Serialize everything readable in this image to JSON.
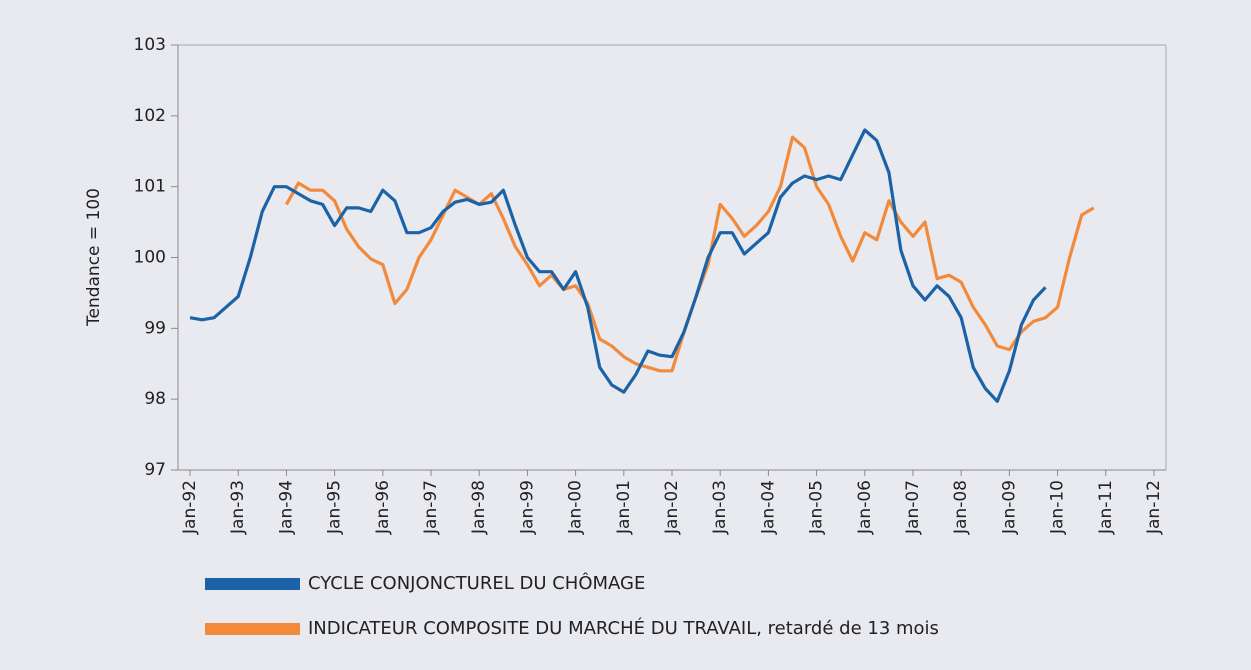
{
  "chart_data": {
    "type": "line",
    "y_label": "Tendance = 100",
    "x": [
      "1992-01",
      "1992-04",
      "1992-07",
      "1992-10",
      "1993-01",
      "1993-04",
      "1993-07",
      "1993-10",
      "1994-01",
      "1994-04",
      "1994-07",
      "1994-10",
      "1995-01",
      "1995-04",
      "1995-07",
      "1995-10",
      "1996-01",
      "1996-04",
      "1996-07",
      "1996-10",
      "1997-01",
      "1997-04",
      "1997-07",
      "1997-10",
      "1998-01",
      "1998-04",
      "1998-07",
      "1998-10",
      "1999-01",
      "1999-04",
      "1999-07",
      "1999-10",
      "2000-01",
      "2000-04",
      "2000-07",
      "2000-10",
      "2001-01",
      "2001-04",
      "2001-07",
      "2001-10",
      "2002-01",
      "2002-04",
      "2002-07",
      "2002-10",
      "2003-01",
      "2003-04",
      "2003-07",
      "2003-10",
      "2004-01",
      "2004-04",
      "2004-07",
      "2004-10",
      "2005-01",
      "2005-04",
      "2005-07",
      "2005-10",
      "2006-01",
      "2006-04",
      "2006-07",
      "2006-10",
      "2007-01",
      "2007-04",
      "2007-07",
      "2007-10",
      "2008-01",
      "2008-04",
      "2008-07",
      "2008-10",
      "2009-01",
      "2009-04",
      "2009-07",
      "2009-10",
      "2010-01",
      "2010-04",
      "2010-07",
      "2010-10"
    ],
    "series": [
      {
        "name": "CYCLE CONJONCTUREL DU CHÔMAGE",
        "color": "#1b63a6",
        "values": [
          99.15,
          99.12,
          99.15,
          99.3,
          99.45,
          100.0,
          100.65,
          101.0,
          101.0,
          100.9,
          100.8,
          100.75,
          100.45,
          100.7,
          100.7,
          100.65,
          100.95,
          100.8,
          100.35,
          100.35,
          100.42,
          100.65,
          100.78,
          100.82,
          100.75,
          100.78,
          100.95,
          100.45,
          100.0,
          99.8,
          99.8,
          99.55,
          99.8,
          99.3,
          98.45,
          98.2,
          98.1,
          98.35,
          98.68,
          98.62,
          98.6,
          98.95,
          99.45,
          100.0,
          100.35,
          100.35,
          100.05,
          100.2,
          100.35,
          100.85,
          101.05,
          101.15,
          101.1,
          101.15,
          101.1,
          101.45,
          101.8,
          101.65,
          101.2,
          100.1,
          99.6,
          99.4,
          99.6,
          99.45,
          99.15,
          98.45,
          98.15,
          97.97,
          98.4,
          99.05,
          99.4,
          99.58,
          null,
          null,
          null,
          null
        ]
      },
      {
        "name": "INDICATEUR COMPOSITE DU MARCHÉ DU TRAVAIL, retardé de 13 mois",
        "color": "#f28a3c",
        "values": [
          null,
          null,
          null,
          null,
          null,
          null,
          null,
          null,
          100.75,
          101.05,
          100.95,
          100.95,
          100.8,
          100.4,
          100.15,
          99.98,
          99.9,
          99.35,
          99.55,
          100.0,
          100.25,
          100.6,
          100.95,
          100.85,
          100.75,
          100.9,
          100.55,
          100.15,
          99.9,
          99.6,
          99.75,
          99.55,
          99.6,
          99.35,
          98.85,
          98.75,
          98.6,
          98.5,
          98.45,
          98.4,
          98.4,
          98.95,
          99.45,
          99.9,
          100.75,
          100.55,
          100.3,
          100.45,
          100.65,
          101.0,
          101.7,
          101.55,
          101.0,
          100.75,
          100.3,
          99.95,
          100.35,
          100.25,
          100.8,
          100.5,
          100.3,
          100.5,
          99.7,
          99.75,
          99.65,
          99.3,
          99.05,
          98.75,
          98.7,
          98.95,
          99.1,
          99.15,
          99.3,
          100.0,
          100.6,
          100.7
        ]
      }
    ],
    "xlim": [
      "1991-10",
      "2012-04"
    ],
    "xticks": [
      {
        "value": "1992-01",
        "label": "Jan-92"
      },
      {
        "value": "1993-01",
        "label": "Jan-93"
      },
      {
        "value": "1994-01",
        "label": "Jan-94"
      },
      {
        "value": "1995-01",
        "label": "Jan-95"
      },
      {
        "value": "1996-01",
        "label": "Jan-96"
      },
      {
        "value": "1997-01",
        "label": "Jan-97"
      },
      {
        "value": "1998-01",
        "label": "Jan-98"
      },
      {
        "value": "1999-01",
        "label": "Jan-99"
      },
      {
        "value": "2000-01",
        "label": "Jan-00"
      },
      {
        "value": "2001-01",
        "label": "Jan-01"
      },
      {
        "value": "2002-01",
        "label": "Jan-02"
      },
      {
        "value": "2003-01",
        "label": "Jan-03"
      },
      {
        "value": "2004-01",
        "label": "Jan-04"
      },
      {
        "value": "2005-01",
        "label": "Jan-05"
      },
      {
        "value": "2006-01",
        "label": "Jan-06"
      },
      {
        "value": "2007-01",
        "label": "Jan-07"
      },
      {
        "value": "2008-01",
        "label": "Jan-08"
      },
      {
        "value": "2009-01",
        "label": "Jan-09"
      },
      {
        "value": "2010-01",
        "label": "Jan-10"
      },
      {
        "value": "2011-01",
        "label": "Jan-11"
      },
      {
        "value": "2012-01",
        "label": "Jan-12"
      }
    ],
    "ylim": [
      97,
      103
    ],
    "yticks": [
      97,
      98,
      99,
      100,
      101,
      102,
      103
    ],
    "grid": false
  }
}
